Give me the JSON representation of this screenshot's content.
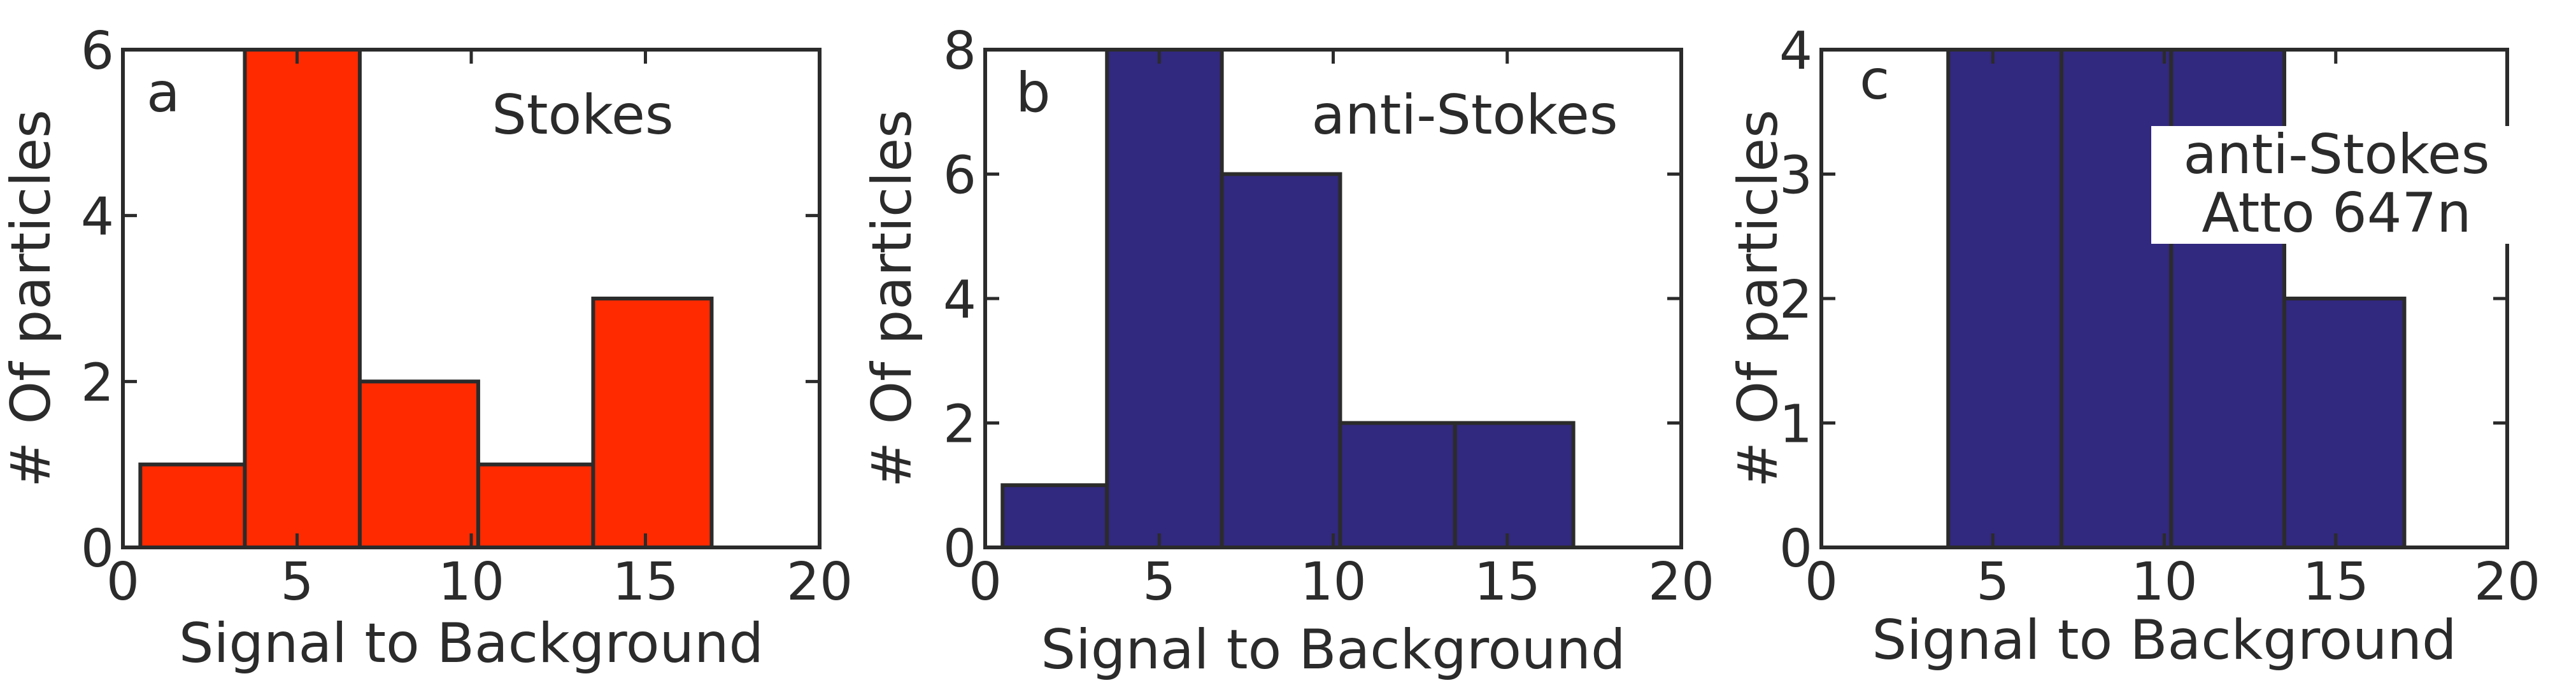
{
  "colors": {
    "axis": "#2b2b2b",
    "stokes": "#ff2a00",
    "anti_stokes": "#31287f",
    "edge": "#2b2b2b"
  },
  "chart_data": [
    {
      "type": "bar",
      "panel": "a",
      "annotation": [
        "Stokes"
      ],
      "xlabel": "Signal to Background",
      "ylabel": "# Of particles",
      "xlim": [
        0,
        20
      ],
      "ylim": [
        0,
        6
      ],
      "xticks": [
        0,
        5,
        10,
        15,
        20
      ],
      "yticks": [
        0,
        2,
        4,
        6
      ],
      "bins": [
        {
          "x0": 0.5,
          "x1": 3.5,
          "count": 1
        },
        {
          "x0": 3.5,
          "x1": 6.8,
          "count": 6
        },
        {
          "x0": 6.8,
          "x1": 10.2,
          "count": 2
        },
        {
          "x0": 10.2,
          "x1": 13.5,
          "count": 1
        },
        {
          "x0": 13.5,
          "x1": 16.9,
          "count": 3
        }
      ],
      "color": "#ff2a00"
    },
    {
      "type": "bar",
      "panel": "b",
      "annotation": [
        "anti-Stokes"
      ],
      "xlabel": "Signal to Background",
      "ylabel": "# Of particles",
      "xlim": [
        0,
        20
      ],
      "ylim": [
        0,
        8
      ],
      "xticks": [
        0,
        5,
        10,
        15,
        20
      ],
      "yticks": [
        0,
        2,
        4,
        6,
        8
      ],
      "bins": [
        {
          "x0": 0.5,
          "x1": 3.5,
          "count": 1
        },
        {
          "x0": 3.5,
          "x1": 6.8,
          "count": 8
        },
        {
          "x0": 6.8,
          "x1": 10.2,
          "count": 6
        },
        {
          "x0": 10.2,
          "x1": 13.5,
          "count": 2
        },
        {
          "x0": 13.5,
          "x1": 16.9,
          "count": 2
        }
      ],
      "color": "#31287f"
    },
    {
      "type": "bar",
      "panel": "c",
      "annotation": [
        "anti-Stokes",
        "Atto 647n"
      ],
      "xlabel": "Signal to Background",
      "ylabel": "# Of particles",
      "xlim": [
        0,
        20
      ],
      "ylim": [
        0,
        4
      ],
      "xticks": [
        0,
        5,
        10,
        15,
        20
      ],
      "yticks": [
        0,
        1,
        2,
        3,
        4
      ],
      "bins": [
        {
          "x0": 3.7,
          "x1": 7.0,
          "count": 4
        },
        {
          "x0": 7.0,
          "x1": 10.2,
          "count": 4
        },
        {
          "x0": 10.2,
          "x1": 13.5,
          "count": 4
        },
        {
          "x0": 13.5,
          "x1": 17.0,
          "count": 2
        }
      ],
      "color": "#31287f"
    }
  ]
}
